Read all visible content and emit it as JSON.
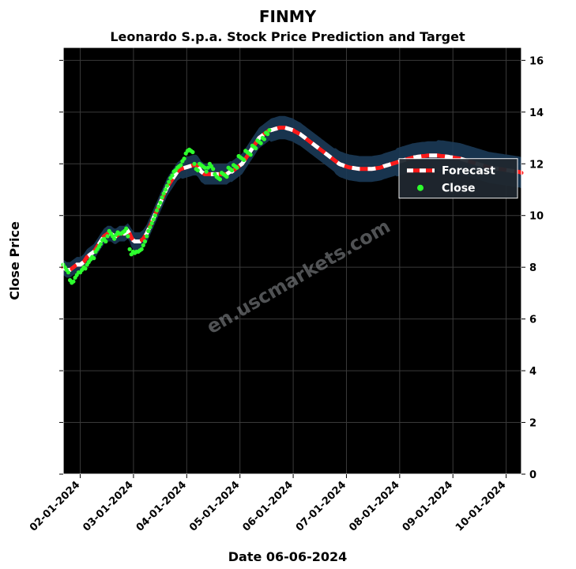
{
  "chart": {
    "type": "line+scatter",
    "title_main": "FINMY",
    "title_sub": "Leonardo S.p.a. Stock Price Prediction and Target",
    "title_main_fontsize": 20,
    "title_sub_fontsize": 16,
    "ylabel": "Close Price",
    "xlabel": "Date 06-06-2024",
    "label_fontsize": 16,
    "tick_fontsize": 13,
    "watermark_text": "en.uscmarkets.com",
    "watermark_fontsize": 24,
    "background_color": "#000000",
    "grid_color": "#3a3a3a",
    "plot_border_color": "#ffffff",
    "forecast_color": "#ff1a1a",
    "forecast_dash_color": "#ffffff",
    "band_color": "#1b3a57",
    "close_color": "#2dff2d",
    "legend_bg": "#202830",
    "legend_border": "#ffffff",
    "legend_text_color": "#ffffff",
    "legend_items": [
      {
        "label": "Forecast",
        "kind": "line"
      },
      {
        "label": "Close",
        "kind": "marker"
      }
    ],
    "ylim": [
      0,
      16.5
    ],
    "yticks": [
      0,
      2,
      4,
      6,
      8,
      10,
      12,
      14,
      16
    ],
    "xticks": [
      "02-01-2024",
      "03-01-2024",
      "04-01-2024",
      "05-01-2024",
      "06-01-2024",
      "07-01-2024",
      "08-01-2024",
      "09-01-2024",
      "10-01-2024"
    ],
    "n_x": 270,
    "forecast": [
      8.0,
      7.95,
      7.9,
      7.9,
      7.9,
      7.95,
      8.0,
      8.05,
      8.1,
      8.1,
      8.1,
      8.15,
      8.2,
      8.3,
      8.4,
      8.45,
      8.5,
      8.55,
      8.6,
      8.7,
      8.8,
      8.9,
      9.0,
      9.1,
      9.2,
      9.25,
      9.3,
      9.3,
      9.3,
      9.25,
      9.2,
      9.2,
      9.25,
      9.3,
      9.3,
      9.3,
      9.3,
      9.35,
      9.4,
      9.3,
      9.15,
      9.05,
      9.0,
      9.0,
      9.0,
      9.0,
      9.05,
      9.1,
      9.2,
      9.3,
      9.45,
      9.6,
      9.75,
      9.9,
      10.05,
      10.2,
      10.35,
      10.5,
      10.65,
      10.8,
      10.95,
      11.1,
      11.2,
      11.3,
      11.4,
      11.5,
      11.6,
      11.7,
      11.75,
      11.8,
      11.82,
      11.84,
      11.86,
      11.88,
      11.9,
      11.92,
      11.94,
      11.95,
      11.95,
      11.9,
      11.8,
      11.7,
      11.65,
      11.6,
      11.6,
      11.6,
      11.6,
      11.6,
      11.6,
      11.6,
      11.6,
      11.6,
      11.6,
      11.6,
      11.6,
      11.6,
      11.6,
      11.65,
      11.7,
      11.7,
      11.75,
      11.8,
      11.85,
      11.9,
      11.95,
      12.0,
      12.1,
      12.2,
      12.3,
      12.4,
      12.5,
      12.6,
      12.7,
      12.8,
      12.9,
      13.0,
      13.05,
      13.1,
      13.15,
      13.2,
      13.25,
      13.3,
      13.3,
      13.32,
      13.34,
      13.36,
      13.38,
      13.4,
      13.4,
      13.4,
      13.4,
      13.38,
      13.36,
      13.34,
      13.32,
      13.3,
      13.25,
      13.22,
      13.18,
      13.15,
      13.1,
      13.05,
      13.0,
      12.95,
      12.9,
      12.85,
      12.8,
      12.75,
      12.7,
      12.65,
      12.6,
      12.55,
      12.5,
      12.45,
      12.4,
      12.35,
      12.3,
      12.25,
      12.2,
      12.15,
      12.1,
      12.05,
      12.0,
      11.97,
      11.95,
      11.92,
      11.9,
      11.88,
      11.86,
      11.85,
      11.84,
      11.83,
      11.82,
      11.81,
      11.8,
      11.8,
      11.8,
      11.8,
      11.8,
      11.8,
      11.8,
      11.8,
      11.81,
      11.82,
      11.83,
      11.84,
      11.85,
      11.87,
      11.9,
      11.92,
      11.94,
      11.96,
      11.98,
      12.0,
      12.02,
      12.04,
      12.06,
      12.08,
      12.1,
      12.12,
      12.14,
      12.16,
      12.18,
      12.2,
      12.22,
      12.24,
      12.25,
      12.26,
      12.27,
      12.28,
      12.29,
      12.3,
      12.3,
      12.31,
      12.32,
      12.32,
      12.32,
      12.32,
      12.32,
      12.32,
      12.32,
      12.31,
      12.3,
      12.3,
      12.29,
      12.28,
      12.27,
      12.26,
      12.25,
      12.24,
      12.23,
      12.22,
      12.21,
      12.2,
      12.18,
      12.16,
      12.14,
      12.12,
      12.1,
      12.08,
      12.06,
      12.04,
      12.02,
      12.0,
      11.98,
      11.96,
      11.94,
      11.92,
      11.9,
      11.88,
      11.86,
      11.85,
      11.84,
      11.83,
      11.82,
      11.81,
      11.8,
      11.79,
      11.78,
      11.77,
      11.76,
      11.75,
      11.74,
      11.73,
      11.72,
      11.71,
      11.7,
      11.69,
      11.68,
      11.65
    ],
    "band_half": [
      0.3,
      0.3,
      0.3,
      0.3,
      0.3,
      0.3,
      0.3,
      0.3,
      0.3,
      0.3,
      0.3,
      0.3,
      0.3,
      0.3,
      0.3,
      0.3,
      0.3,
      0.3,
      0.3,
      0.3,
      0.3,
      0.3,
      0.3,
      0.3,
      0.3,
      0.3,
      0.3,
      0.3,
      0.3,
      0.3,
      0.3,
      0.3,
      0.3,
      0.3,
      0.3,
      0.3,
      0.3,
      0.3,
      0.3,
      0.3,
      0.35,
      0.35,
      0.35,
      0.35,
      0.35,
      0.35,
      0.35,
      0.35,
      0.35,
      0.35,
      0.35,
      0.35,
      0.35,
      0.35,
      0.35,
      0.35,
      0.35,
      0.35,
      0.35,
      0.35,
      0.35,
      0.35,
      0.35,
      0.35,
      0.35,
      0.35,
      0.35,
      0.35,
      0.35,
      0.35,
      0.4,
      0.4,
      0.4,
      0.4,
      0.4,
      0.4,
      0.4,
      0.4,
      0.4,
      0.4,
      0.4,
      0.4,
      0.4,
      0.4,
      0.4,
      0.4,
      0.4,
      0.4,
      0.4,
      0.4,
      0.4,
      0.4,
      0.4,
      0.4,
      0.4,
      0.4,
      0.4,
      0.4,
      0.4,
      0.4,
      0.4,
      0.4,
      0.4,
      0.4,
      0.4,
      0.4,
      0.4,
      0.4,
      0.4,
      0.4,
      0.4,
      0.4,
      0.4,
      0.4,
      0.4,
      0.4,
      0.4,
      0.4,
      0.4,
      0.4,
      0.4,
      0.4,
      0.45,
      0.45,
      0.45,
      0.45,
      0.45,
      0.45,
      0.45,
      0.45,
      0.45,
      0.45,
      0.45,
      0.45,
      0.45,
      0.45,
      0.45,
      0.45,
      0.45,
      0.45,
      0.45,
      0.45,
      0.45,
      0.45,
      0.45,
      0.45,
      0.45,
      0.45,
      0.45,
      0.45,
      0.45,
      0.45,
      0.45,
      0.45,
      0.45,
      0.45,
      0.45,
      0.45,
      0.45,
      0.45,
      0.5,
      0.5,
      0.5,
      0.5,
      0.5,
      0.5,
      0.5,
      0.5,
      0.5,
      0.5,
      0.5,
      0.5,
      0.5,
      0.5,
      0.5,
      0.5,
      0.5,
      0.5,
      0.5,
      0.5,
      0.5,
      0.5,
      0.5,
      0.5,
      0.5,
      0.5,
      0.5,
      0.5,
      0.5,
      0.5,
      0.5,
      0.5,
      0.5,
      0.5,
      0.5,
      0.5,
      0.55,
      0.55,
      0.55,
      0.55,
      0.55,
      0.55,
      0.55,
      0.55,
      0.55,
      0.55,
      0.55,
      0.55,
      0.55,
      0.55,
      0.55,
      0.55,
      0.55,
      0.55,
      0.55,
      0.55,
      0.55,
      0.55,
      0.55,
      0.55,
      0.6,
      0.6,
      0.6,
      0.6,
      0.6,
      0.6,
      0.6,
      0.6,
      0.6,
      0.6,
      0.6,
      0.6,
      0.6,
      0.6,
      0.6,
      0.6,
      0.6,
      0.6,
      0.6,
      0.6,
      0.6,
      0.6,
      0.6,
      0.6,
      0.6,
      0.6,
      0.6,
      0.6,
      0.6,
      0.6,
      0.6,
      0.6,
      0.6,
      0.6,
      0.6,
      0.6,
      0.6,
      0.6,
      0.6,
      0.6,
      0.6,
      0.6,
      0.6,
      0.6,
      0.6,
      0.6,
      0.6,
      0.6,
      0.6,
      0.6
    ],
    "close": [
      [
        0,
        8.1
      ],
      [
        1,
        8.0
      ],
      [
        2,
        7.9
      ],
      [
        3,
        7.8
      ],
      [
        4,
        7.5
      ],
      [
        5,
        7.4
      ],
      [
        6,
        7.45
      ],
      [
        7,
        7.6
      ],
      [
        8,
        7.7
      ],
      [
        9,
        7.8
      ],
      [
        10,
        7.8
      ],
      [
        11,
        7.9
      ],
      [
        12,
        8.0
      ],
      [
        13,
        7.95
      ],
      [
        14,
        8.1
      ],
      [
        15,
        8.2
      ],
      [
        16,
        8.3
      ],
      [
        17,
        8.4
      ],
      [
        18,
        8.35
      ],
      [
        19,
        8.6
      ],
      [
        20,
        8.7
      ],
      [
        21,
        8.8
      ],
      [
        22,
        8.9
      ],
      [
        23,
        9.05
      ],
      [
        24,
        9.1
      ],
      [
        25,
        9.0
      ],
      [
        26,
        9.2
      ],
      [
        27,
        9.4
      ],
      [
        28,
        9.3
      ],
      [
        29,
        9.2
      ],
      [
        30,
        9.1
      ],
      [
        31,
        9.25
      ],
      [
        32,
        9.35
      ],
      [
        33,
        9.3
      ],
      [
        34,
        9.3
      ],
      [
        35,
        9.35
      ],
      [
        36,
        9.4
      ],
      [
        37,
        9.5
      ],
      [
        38,
        9.2
      ],
      [
        39,
        8.7
      ],
      [
        40,
        8.5
      ],
      [
        41,
        8.6
      ],
      [
        42,
        8.55
      ],
      [
        43,
        8.6
      ],
      [
        44,
        8.6
      ],
      [
        45,
        8.65
      ],
      [
        46,
        8.7
      ],
      [
        47,
        8.85
      ],
      [
        48,
        9.0
      ],
      [
        49,
        9.2
      ],
      [
        50,
        9.4
      ],
      [
        51,
        9.55
      ],
      [
        52,
        9.7
      ],
      [
        53,
        9.85
      ],
      [
        54,
        10.0
      ],
      [
        55,
        10.2
      ],
      [
        56,
        10.35
      ],
      [
        57,
        10.5
      ],
      [
        58,
        10.7
      ],
      [
        59,
        10.85
      ],
      [
        60,
        11.0
      ],
      [
        61,
        11.15
      ],
      [
        62,
        11.3
      ],
      [
        63,
        11.45
      ],
      [
        64,
        11.55
      ],
      [
        65,
        11.7
      ],
      [
        66,
        11.75
      ],
      [
        67,
        11.85
      ],
      [
        68,
        11.9
      ],
      [
        69,
        11.95
      ],
      [
        70,
        12.1
      ],
      [
        71,
        12.2
      ],
      [
        72,
        12.4
      ],
      [
        73,
        12.5
      ],
      [
        74,
        12.55
      ],
      [
        75,
        12.5
      ],
      [
        76,
        12.45
      ],
      [
        77,
        12.0
      ],
      [
        78,
        11.8
      ],
      [
        79,
        11.75
      ],
      [
        80,
        12.0
      ],
      [
        81,
        11.95
      ],
      [
        82,
        11.9
      ],
      [
        83,
        11.85
      ],
      [
        84,
        11.7
      ],
      [
        85,
        11.85
      ],
      [
        86,
        12.0
      ],
      [
        87,
        11.9
      ],
      [
        88,
        11.8
      ],
      [
        89,
        11.6
      ],
      [
        90,
        11.5
      ],
      [
        91,
        11.45
      ],
      [
        92,
        11.4
      ],
      [
        93,
        11.65
      ],
      [
        94,
        11.6
      ],
      [
        95,
        11.55
      ],
      [
        96,
        11.5
      ],
      [
        97,
        11.85
      ],
      [
        98,
        11.8
      ],
      [
        99,
        11.75
      ],
      [
        100,
        11.95
      ],
      [
        101,
        11.9
      ],
      [
        102,
        11.85
      ],
      [
        103,
        12.3
      ],
      [
        104,
        12.25
      ],
      [
        105,
        12.2
      ],
      [
        106,
        12.15
      ],
      [
        107,
        12.5
      ],
      [
        108,
        12.45
      ],
      [
        109,
        12.4
      ],
      [
        110,
        12.35
      ],
      [
        111,
        12.7
      ],
      [
        112,
        12.65
      ],
      [
        113,
        12.6
      ],
      [
        114,
        12.9
      ],
      [
        115,
        12.85
      ],
      [
        116,
        12.8
      ],
      [
        117,
        13.0
      ],
      [
        118,
        12.95
      ],
      [
        119,
        13.2
      ],
      [
        120,
        13.15
      ],
      [
        121,
        13.3
      ]
    ]
  }
}
